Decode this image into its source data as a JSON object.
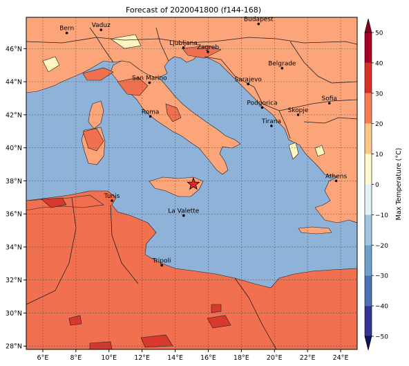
{
  "title": "Forecast of 2020041800 (f144-168)",
  "colors": {
    "sea": "#8fb2d8",
    "land_main": "#fca57a",
    "land_warm": "#f07050",
    "land_hot": "#d73a2c",
    "land_cool": "#fef5c0",
    "border": "#1e1e1e",
    "marker_star": "#e0282c"
  },
  "map": {
    "lon_labels": [
      "6°E",
      "8°E",
      "10°E",
      "12°E",
      "14°E",
      "16°E",
      "18°E",
      "20°E",
      "22°E",
      "24°E"
    ],
    "lat_labels": [
      "28°N",
      "30°N",
      "32°N",
      "34°N",
      "36°N",
      "38°N",
      "40°N",
      "42°N",
      "44°N",
      "46°N"
    ],
    "grid": "dotted",
    "extent": {
      "lon_min": 5.0,
      "lon_max": 25.0,
      "lat_min": 27.8,
      "lat_max": 47.9
    },
    "marker": {
      "type": "star-icon",
      "lon": 15.1,
      "lat": 37.8
    },
    "cities": [
      {
        "name": "Bern",
        "lon": 7.45,
        "lat": 46.95
      },
      {
        "name": "Vaduz",
        "lon": 9.52,
        "lat": 47.14
      },
      {
        "name": "Budapest",
        "lon": 19.04,
        "lat": 47.5
      },
      {
        "name": "Ljubljana",
        "lon": 14.5,
        "lat": 46.06
      },
      {
        "name": "Zagreb",
        "lon": 15.98,
        "lat": 45.81
      },
      {
        "name": "Belgrade",
        "lon": 20.46,
        "lat": 44.82
      },
      {
        "name": "San Marino",
        "lon": 12.45,
        "lat": 43.94
      },
      {
        "name": "Sarajevo",
        "lon": 18.41,
        "lat": 43.86
      },
      {
        "name": "Sofia",
        "lon": 23.32,
        "lat": 42.7
      },
      {
        "name": "Podgorica",
        "lon": 19.26,
        "lat": 42.44
      },
      {
        "name": "Skopje",
        "lon": 21.43,
        "lat": 42.0
      },
      {
        "name": "Roma",
        "lon": 12.5,
        "lat": 41.9
      },
      {
        "name": "Tirana",
        "lon": 19.82,
        "lat": 41.33
      },
      {
        "name": "Athens",
        "lon": 23.73,
        "lat": 38.0
      },
      {
        "name": "Tunis",
        "lon": 10.18,
        "lat": 36.8
      },
      {
        "name": "La Valette",
        "lon": 14.51,
        "lat": 35.9
      },
      {
        "name": "Tripoli",
        "lon": 13.19,
        "lat": 32.89
      }
    ]
  },
  "colorbar": {
    "label": "Max Temperature (°C)",
    "ticks": [
      "50",
      "40",
      "30",
      "20",
      "10",
      "0",
      "−10",
      "−20",
      "−30",
      "−40",
      "−50"
    ],
    "levels": [
      {
        "from": -50,
        "to": -40,
        "color": "#313695"
      },
      {
        "from": -40,
        "to": -30,
        "color": "#4a72b3"
      },
      {
        "from": -30,
        "to": -20,
        "color": "#6fa0cc"
      },
      {
        "from": -20,
        "to": -10,
        "color": "#9fc6df"
      },
      {
        "from": -10,
        "to": 0,
        "color": "#dff2f7"
      },
      {
        "from": 0,
        "to": 10,
        "color": "#fff9cd"
      },
      {
        "from": 10,
        "to": 20,
        "color": "#fdc78a"
      },
      {
        "from": 20,
        "to": 30,
        "color": "#f57d52"
      },
      {
        "from": 30,
        "to": 40,
        "color": "#d73027"
      },
      {
        "from": 40,
        "to": 50,
        "color": "#a50026"
      }
    ],
    "extend_top_color": "#8b0020",
    "extend_bottom_color": "#08185c"
  }
}
